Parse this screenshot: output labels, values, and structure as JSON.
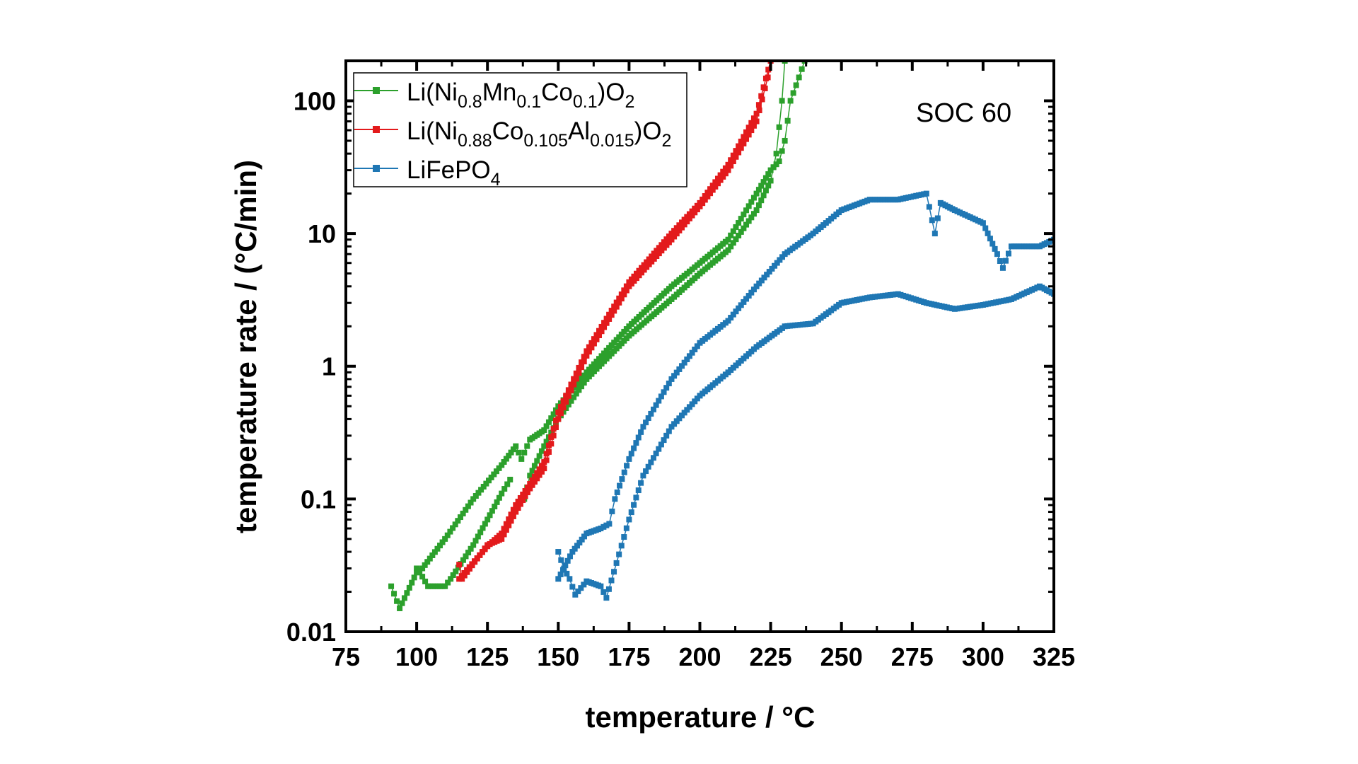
{
  "chart_data": {
    "type": "scatter",
    "xlabel": "temperature / °C",
    "ylabel": "temperature rate / (°C/min)",
    "xlim": [
      75,
      325
    ],
    "ylim": [
      0.01,
      200
    ],
    "yscale": "log",
    "xticks": [
      "75",
      "100",
      "125",
      "150",
      "175",
      "200",
      "225",
      "250",
      "275",
      "300",
      "325"
    ],
    "yticks": [
      "0.01",
      "0.1",
      "1",
      "10",
      "100"
    ],
    "annotation": "SOC 60",
    "legend_position": "top-left",
    "series": [
      {
        "name": "Li(Ni0.8Mn0.1Co0.1)O2",
        "legend": {
          "base": "Li(Ni",
          "s1": "0.8",
          "m1": "Mn",
          "s2": "0.1",
          "m2": "Co",
          "s3": "0.1",
          "m3": ")O",
          "s4": "2"
        },
        "color": "#2ca02c",
        "branches": [
          [
            [
              91,
              0.022
            ],
            [
              93,
              0.017
            ],
            [
              94,
              0.015
            ],
            [
              100,
              0.028
            ],
            [
              102,
              0.03
            ],
            [
              110,
              0.05
            ],
            [
              120,
              0.1
            ],
            [
              130,
              0.18
            ],
            [
              135,
              0.25
            ],
            [
              137,
              0.2
            ],
            [
              140,
              0.28
            ],
            [
              145,
              0.33
            ],
            [
              150,
              0.5
            ],
            [
              160,
              0.9
            ],
            [
              175,
              2
            ],
            [
              190,
              4
            ],
            [
              200,
              6
            ],
            [
              210,
              9
            ],
            [
              220,
              20
            ],
            [
              225,
              30
            ],
            [
              228,
              35
            ],
            [
              230,
              50
            ],
            [
              232,
              100
            ],
            [
              235,
              150
            ],
            [
              237,
              200
            ]
          ],
          [
            [
              100,
              0.03
            ],
            [
              102,
              0.026
            ],
            [
              104,
              0.022
            ],
            [
              110,
              0.022
            ],
            [
              112,
              0.025
            ],
            [
              120,
              0.045
            ],
            [
              125,
              0.07
            ],
            [
              130,
              0.11
            ],
            [
              133,
              0.14
            ]
          ],
          [
            [
              138,
              0.1
            ],
            [
              140,
              0.15
            ],
            [
              145,
              0.25
            ],
            [
              150,
              0.4
            ],
            [
              160,
              0.8
            ],
            [
              175,
              1.7
            ],
            [
              190,
              3.2
            ],
            [
              200,
              5
            ],
            [
              210,
              7.5
            ],
            [
              220,
              15
            ],
            [
              225,
              25
            ],
            [
              227,
              40
            ],
            [
              229,
              100
            ],
            [
              230,
              200
            ]
          ]
        ]
      },
      {
        "name": "Li(Ni0.88Co0.105Al0.015)O2",
        "legend": {
          "base": "Li(Ni",
          "s1": "0.88",
          "m1": "Co",
          "s2": "0.105",
          "m2": "Al",
          "s3": "0.015",
          "m3": ")O",
          "s4": "2"
        },
        "color": "#e31a1c",
        "branches": [
          [
            [
              115,
              0.032
            ],
            [
              116,
              0.025
            ],
            [
              125,
              0.045
            ],
            [
              130,
              0.05
            ],
            [
              135,
              0.08
            ],
            [
              140,
              0.12
            ],
            [
              145,
              0.17
            ],
            [
              150,
              0.4
            ],
            [
              160,
              1.2
            ],
            [
              175,
              4
            ],
            [
              190,
              9
            ],
            [
              200,
              16
            ],
            [
              210,
              30
            ],
            [
              220,
              70
            ],
            [
              224,
              150
            ],
            [
              225,
              200
            ]
          ],
          [
            [
              115,
              0.025
            ],
            [
              125,
              0.044
            ],
            [
              130,
              0.055
            ],
            [
              135,
              0.09
            ],
            [
              140,
              0.13
            ],
            [
              145,
              0.19
            ],
            [
              150,
              0.45
            ],
            [
              160,
              1.3
            ],
            [
              175,
              4.3
            ],
            [
              190,
              10
            ],
            [
              200,
              17
            ],
            [
              210,
              33
            ],
            [
              220,
              80
            ],
            [
              225,
              200
            ]
          ]
        ]
      },
      {
        "name": "LiFePO4",
        "legend": {
          "base": "LiFePO",
          "s1": "4"
        },
        "color": "#1f77b4",
        "branches": [
          [
            [
              150,
              0.025
            ],
            [
              155,
              0.04
            ],
            [
              160,
              0.055
            ],
            [
              165,
              0.06
            ],
            [
              168,
              0.065
            ],
            [
              170,
              0.1
            ],
            [
              175,
              0.2
            ],
            [
              180,
              0.35
            ],
            [
              190,
              0.8
            ],
            [
              200,
              1.5
            ],
            [
              210,
              2.2
            ],
            [
              220,
              4
            ],
            [
              230,
              7
            ],
            [
              240,
              10
            ],
            [
              250,
              15
            ],
            [
              260,
              18
            ],
            [
              270,
              18
            ],
            [
              280,
              20
            ],
            [
              283,
              10
            ],
            [
              285,
              17
            ],
            [
              290,
              15
            ],
            [
              300,
              12
            ],
            [
              305,
              7
            ],
            [
              307,
              5.5
            ],
            [
              310,
              8
            ],
            [
              320,
              8
            ],
            [
              325,
              9
            ]
          ],
          [
            [
              150,
              0.04
            ],
            [
              152,
              0.03
            ],
            [
              154,
              0.025
            ],
            [
              156,
              0.019
            ],
            [
              160,
              0.024
            ],
            [
              165,
              0.022
            ],
            [
              167,
              0.018
            ],
            [
              175,
              0.07
            ],
            [
              180,
              0.15
            ],
            [
              190,
              0.35
            ],
            [
              200,
              0.6
            ],
            [
              210,
              0.9
            ],
            [
              220,
              1.4
            ],
            [
              230,
              2
            ],
            [
              240,
              2.1
            ],
            [
              250,
              3
            ],
            [
              260,
              3.3
            ],
            [
              270,
              3.5
            ],
            [
              280,
              3
            ],
            [
              290,
              2.7
            ],
            [
              300,
              2.9
            ],
            [
              310,
              3.2
            ],
            [
              320,
              4
            ],
            [
              325,
              3.5
            ]
          ]
        ]
      }
    ]
  }
}
